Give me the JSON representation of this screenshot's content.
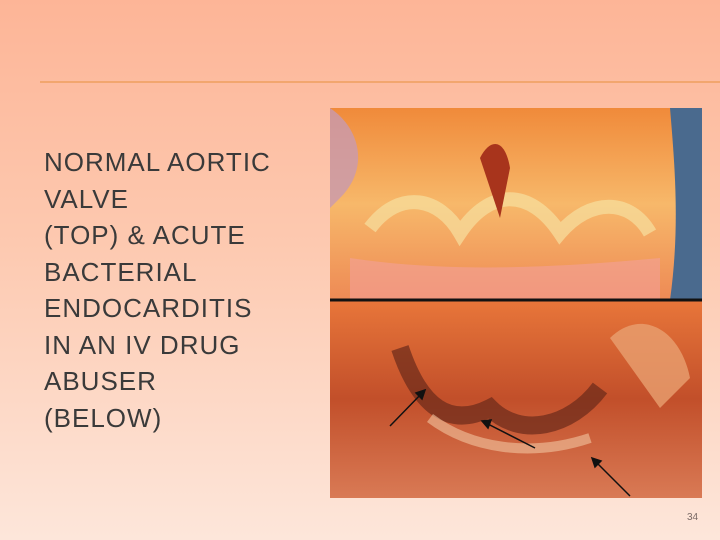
{
  "caption": {
    "lines": [
      "NORMAL AORTIC",
      "VALVE",
      "(TOP) & ACUTE",
      "BACTERIAL",
      "ENDOCARDITIS",
      "IN AN IV DRUG",
      "ABUSER",
      "(BELOW)"
    ]
  },
  "page_number": "34"
}
